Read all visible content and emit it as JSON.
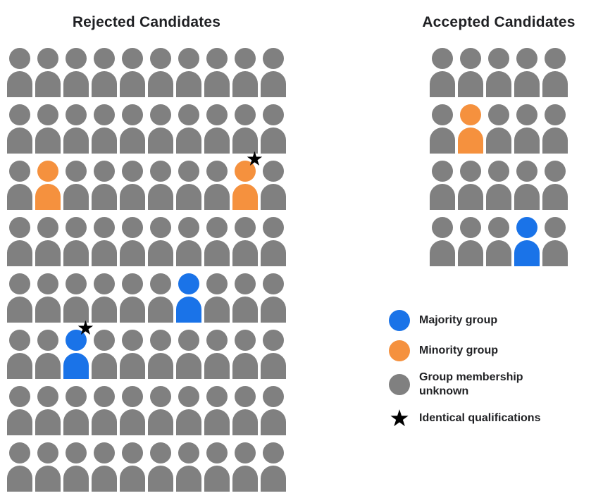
{
  "rejected": {
    "title": "Rejected Candidates",
    "cols": 10,
    "rows": [
      [
        "G",
        "G",
        "G",
        "G",
        "G",
        "G",
        "G",
        "G",
        "G",
        "G"
      ],
      [
        "G",
        "G",
        "G",
        "G",
        "G",
        "G",
        "G",
        "G",
        "G",
        "G"
      ],
      [
        "G",
        "O",
        "G",
        "G",
        "G",
        "G",
        "G",
        "G",
        "O*",
        "G"
      ],
      [
        "G",
        "G",
        "G",
        "G",
        "G",
        "G",
        "G",
        "G",
        "G",
        "G"
      ],
      [
        "G",
        "G",
        "G",
        "G",
        "G",
        "G",
        "B",
        "G",
        "G",
        "G"
      ],
      [
        "G",
        "G",
        "B*",
        "G",
        "G",
        "G",
        "G",
        "G",
        "G",
        "G"
      ],
      [
        "G",
        "G",
        "G",
        "G",
        "G",
        "G",
        "G",
        "G",
        "G",
        "G"
      ],
      [
        "G",
        "G",
        "G",
        "G",
        "G",
        "G",
        "G",
        "G",
        "G",
        "G"
      ]
    ]
  },
  "accepted": {
    "title": "Accepted Candidates",
    "cols": 5,
    "rows": [
      [
        "G",
        "G",
        "G",
        "G",
        "G"
      ],
      [
        "G",
        "O",
        "G",
        "G",
        "G"
      ],
      [
        "G",
        "G",
        "G",
        "G",
        "G"
      ],
      [
        "G",
        "G",
        "G",
        "B",
        "G"
      ]
    ]
  },
  "legend": {
    "items": [
      {
        "swatch": "majority",
        "label": "Majority group"
      },
      {
        "swatch": "minority",
        "label": "Minority group"
      },
      {
        "swatch": "unknown",
        "label": "Group membership unknown"
      },
      {
        "swatch": "star",
        "label": "Identical qualifications"
      }
    ]
  },
  "glyphs": {
    "star": "★"
  },
  "colors": {
    "majority": "#1A73E8",
    "minority": "#F5913E",
    "unknown": "#808080",
    "star": "#000000",
    "title_text": "#202124",
    "background": "#FFFFFF"
  }
}
